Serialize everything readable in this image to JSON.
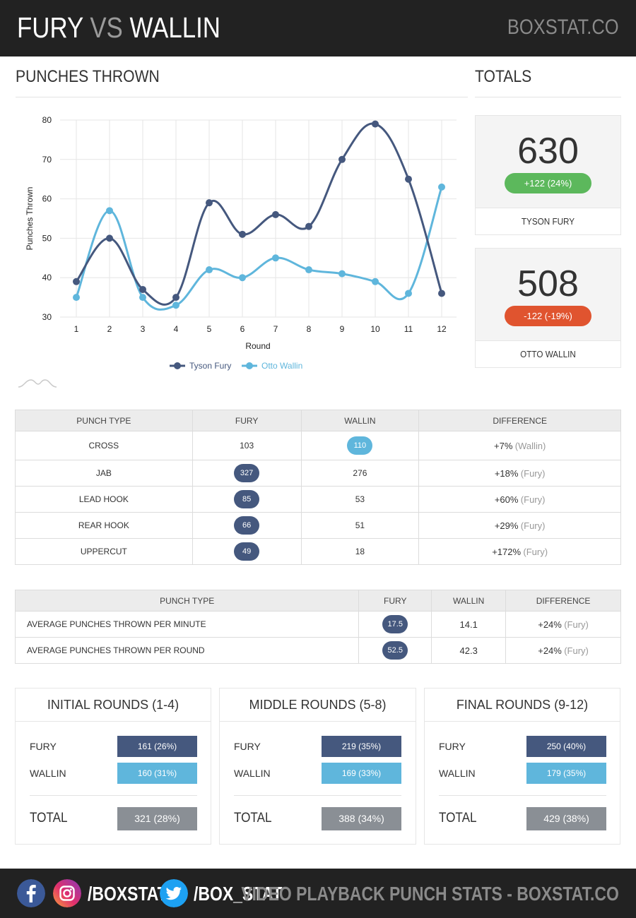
{
  "header": {
    "title_a": "FURY",
    "title_vs": "VS",
    "title_b": "WALLIN",
    "brand": "BOXSTAT.CO"
  },
  "sections": {
    "punches_thrown": "PUNCHES THROWN",
    "totals": "TOTALS"
  },
  "colors": {
    "fury": "#45587e",
    "wallin": "#5fb6dc",
    "positive": "#5cb85c",
    "negative": "#e0542f",
    "total": "#8a8f95"
  },
  "chart_data": {
    "type": "line",
    "title": "",
    "xlabel": "Round",
    "ylabel": "Punches Thrown",
    "categories": [
      "1",
      "2",
      "3",
      "4",
      "5",
      "6",
      "7",
      "8",
      "9",
      "10",
      "11",
      "12"
    ],
    "ylim": [
      30,
      80
    ],
    "yticks": [
      30,
      40,
      50,
      60,
      70,
      80
    ],
    "grid": true,
    "legend": "bottom",
    "series": [
      {
        "name": "Tyson Fury",
        "color": "#45587e",
        "values": [
          39,
          50,
          37,
          35,
          59,
          51,
          56,
          53,
          70,
          79,
          65,
          36
        ]
      },
      {
        "name": "Otto Wallin",
        "color": "#5fb6dc",
        "values": [
          35,
          57,
          35,
          33,
          42,
          40,
          45,
          42,
          41,
          39,
          36,
          63
        ]
      }
    ]
  },
  "totals": [
    {
      "value": "630",
      "change": "+122 (24%)",
      "direction": "up",
      "name": "TYSON FURY"
    },
    {
      "value": "508",
      "change": "-122 (-19%)",
      "direction": "down",
      "name": "OTTO WALLIN"
    }
  ],
  "punch_table": {
    "headers": [
      "PUNCH TYPE",
      "FURY",
      "WALLIN",
      "DIFFERENCE"
    ],
    "rows": [
      {
        "type": "CROSS",
        "fury": "103",
        "wallin": "110",
        "leader": "wallin",
        "diff": "+7%",
        "who": "(Wallin)"
      },
      {
        "type": "JAB",
        "fury": "327",
        "wallin": "276",
        "leader": "fury",
        "diff": "+18%",
        "who": "(Fury)"
      },
      {
        "type": "LEAD HOOK",
        "fury": "85",
        "wallin": "53",
        "leader": "fury",
        "diff": "+60%",
        "who": "(Fury)"
      },
      {
        "type": "REAR HOOK",
        "fury": "66",
        "wallin": "51",
        "leader": "fury",
        "diff": "+29%",
        "who": "(Fury)"
      },
      {
        "type": "UPPERCUT",
        "fury": "49",
        "wallin": "18",
        "leader": "fury",
        "diff": "+172%",
        "who": "(Fury)"
      }
    ]
  },
  "avg_table": {
    "headers": [
      "PUNCH TYPE",
      "FURY",
      "WALLIN",
      "DIFFERENCE"
    ],
    "rows": [
      {
        "type": "AVERAGE PUNCHES THROWN PER MINUTE",
        "fury": "17.5",
        "wallin": "14.1",
        "leader": "fury",
        "diff": "+24%",
        "who": "(Fury)"
      },
      {
        "type": "AVERAGE PUNCHES THROWN PER ROUND",
        "fury": "52.5",
        "wallin": "42.3",
        "leader": "fury",
        "diff": "+24%",
        "who": "(Fury)"
      }
    ]
  },
  "rounds": [
    {
      "title": "INITIAL ROUNDS (1-4)",
      "fury_label": "FURY",
      "fury": "161 (26%)",
      "wallin_label": "WALLIN",
      "wallin": "160 (31%)",
      "total_label": "TOTAL",
      "total": "321 (28%)"
    },
    {
      "title": "MIDDLE ROUNDS (5-8)",
      "fury_label": "FURY",
      "fury": "219 (35%)",
      "wallin_label": "WALLIN",
      "wallin": "169 (33%)",
      "total_label": "TOTAL",
      "total": "388 (34%)"
    },
    {
      "title": "FINAL ROUNDS (9-12)",
      "fury_label": "FURY",
      "fury": "250 (40%)",
      "wallin_label": "WALLIN",
      "wallin": "179 (35%)",
      "total_label": "TOTAL",
      "total": "429 (38%)"
    }
  ],
  "footer": {
    "handle_1": "/BOXSTAT",
    "handle_2": "/BOX_STAT",
    "tagline": "VIDEO PLAYBACK PUNCH STATS - BOXSTAT.CO",
    "icons": [
      "facebook-icon",
      "instagram-icon",
      "twitter-icon"
    ]
  }
}
